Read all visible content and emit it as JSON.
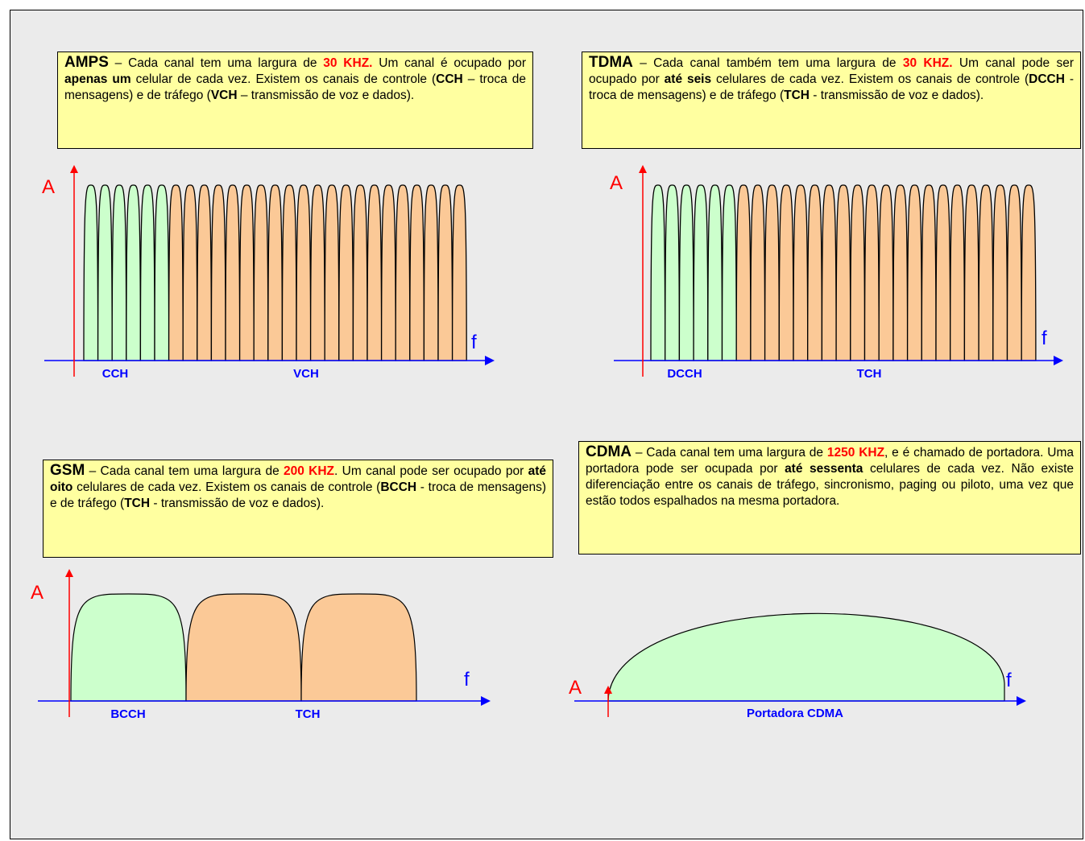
{
  "colors": {
    "control_fill": "#ccffcc",
    "traffic_fill": "#fbc997",
    "amplitude_axis": "#ff0000",
    "frequency_axis": "#0000ff",
    "note_bg": "#ffffa0",
    "highlight": "#ff0000",
    "band_label": "#0000ff"
  },
  "notes": {
    "amps": {
      "lead": "AMPS",
      "t1": " – Cada canal tem uma largura de ",
      "bw": "30 KHZ.",
      "t2": " Um canal é ocupado por ",
      "b1": "apenas um",
      "t3": " celular de cada vez. Existem os canais de controle (",
      "b2": "CCH",
      "t4": " – troca de mensagens) e de tráfego (",
      "b3": "VCH",
      "t5": " – transmissão de voz e dados)."
    },
    "tdma": {
      "lead": "TDMA",
      "t1": " – Cada canal também tem uma largura de ",
      "bw": "30 KHZ.",
      "t2": " Um canal pode ser ocupado por ",
      "b1": "até seis",
      "t3": " celulares de cada vez. Existem os canais de controle (",
      "b2": "DCCH",
      "t4": " - troca de mensagens) e de tráfego (",
      "b3": "TCH",
      "t5": " - transmissão de voz e dados)."
    },
    "gsm": {
      "lead": "GSM",
      "t1": " – Cada canal tem uma largura de ",
      "bw": "200 KHZ",
      "t2": ". Um canal pode ser ocupado por ",
      "b1": "até oito",
      "t3": " celulares de cada vez. Existem os canais de controle (",
      "b2": "BCCH",
      "t4": " - troca de mensagens) e de tráfego (",
      "b3": "TCH",
      "t5": " - transmissão de voz e dados)."
    },
    "cdma": {
      "lead": "CDMA",
      "t1": " – Cada canal tem uma largura de ",
      "bw": "1250 KHZ",
      "t2": ", e é chamado de portadora. Uma portadora pode ser ocupada por ",
      "b1": "até sessenta",
      "t3": " celulares de cada vez. Não existe diferenciação entre os canais de tráfego, sincronismo, paging ou piloto, uma vez que estão todos espalhados na mesma portadora."
    }
  },
  "diagrams": {
    "amps": {
      "y_axis_label": "A",
      "x_axis_label": "f",
      "control_label": "CCH",
      "traffic_label": "VCH",
      "control_channels": 6,
      "traffic_channels": 21
    },
    "tdma": {
      "y_axis_label": "A",
      "x_axis_label": "f",
      "control_label": "DCCH",
      "traffic_label": "TCH",
      "control_channels": 6,
      "traffic_channels": 21
    },
    "gsm": {
      "y_axis_label": "A",
      "x_axis_label": "f",
      "control_label": "BCCH",
      "traffic_label": "TCH",
      "control_channels": 1,
      "traffic_channels": 2
    },
    "cdma": {
      "y_axis_label": "A",
      "x_axis_label": "f",
      "carrier_label": "Portadora CDMA",
      "carriers": 1
    }
  }
}
